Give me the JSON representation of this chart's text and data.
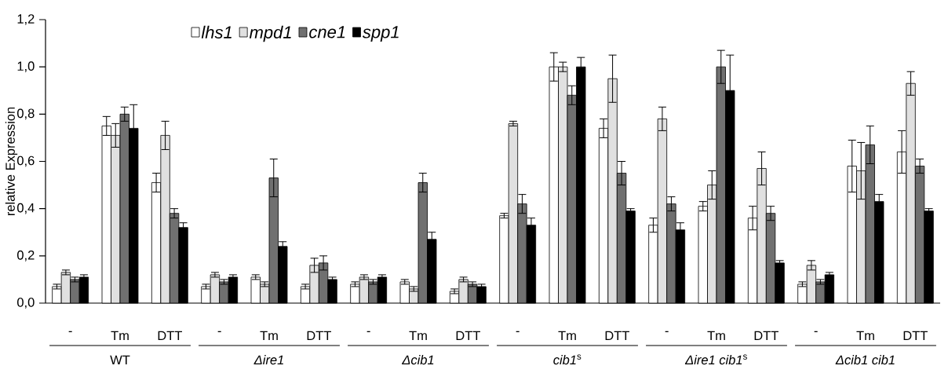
{
  "chart_data": {
    "type": "bar",
    "ylabel": "relative Expression",
    "categories": [
      "-",
      "Tm",
      "DTT",
      "-",
      "Tm",
      "DTT",
      "-",
      "Tm",
      "DTT",
      "-",
      "Tm",
      "DTT",
      "-",
      "Tm",
      "DTT",
      "-",
      "Tm",
      "DTT"
    ],
    "series": [
      {
        "name": "lhs1",
        "color": "#ffffff",
        "values": [
          0.07,
          0.75,
          0.51,
          0.07,
          0.11,
          0.07,
          0.08,
          0.09,
          0.05,
          0.37,
          1.0,
          0.74,
          0.33,
          0.41,
          0.36,
          0.08,
          0.58,
          0.64
        ],
        "errors": [
          0.01,
          0.04,
          0.04,
          0.01,
          0.01,
          0.01,
          0.01,
          0.01,
          0.01,
          0.01,
          0.06,
          0.04,
          0.03,
          0.02,
          0.05,
          0.01,
          0.11,
          0.09
        ]
      },
      {
        "name": "mpd1",
        "color": "#e0e0e0",
        "values": [
          0.13,
          0.71,
          0.71,
          0.12,
          0.08,
          0.16,
          0.11,
          0.06,
          0.1,
          0.76,
          1.0,
          0.95,
          0.78,
          0.5,
          0.57,
          0.16,
          0.56,
          0.93
        ],
        "errors": [
          0.01,
          0.05,
          0.06,
          0.01,
          0.01,
          0.03,
          0.01,
          0.01,
          0.01,
          0.01,
          0.02,
          0.1,
          0.05,
          0.06,
          0.07,
          0.02,
          0.12,
          0.05
        ]
      },
      {
        "name": "cne1",
        "color": "#707070",
        "values": [
          0.1,
          0.8,
          0.38,
          0.09,
          0.53,
          0.17,
          0.09,
          0.51,
          0.08,
          0.42,
          0.88,
          0.55,
          0.42,
          1.0,
          0.38,
          0.09,
          0.67,
          0.58
        ],
        "errors": [
          0.01,
          0.03,
          0.02,
          0.01,
          0.08,
          0.03,
          0.01,
          0.04,
          0.01,
          0.04,
          0.04,
          0.05,
          0.03,
          0.07,
          0.03,
          0.01,
          0.08,
          0.03
        ]
      },
      {
        "name": "spp1",
        "color": "#000000",
        "values": [
          0.11,
          0.74,
          0.32,
          0.11,
          0.24,
          0.1,
          0.11,
          0.27,
          0.07,
          0.33,
          1.0,
          0.39,
          0.31,
          0.9,
          0.17,
          0.12,
          0.43,
          0.39
        ],
        "errors": [
          0.01,
          0.1,
          0.02,
          0.01,
          0.02,
          0.01,
          0.01,
          0.03,
          0.01,
          0.03,
          0.04,
          0.01,
          0.03,
          0.15,
          0.01,
          0.01,
          0.03,
          0.01
        ]
      }
    ],
    "ylim": [
      0,
      1.2
    ],
    "yticks": [
      {
        "value": 0,
        "label": "0,0"
      },
      {
        "value": 0.2,
        "label": "0,2"
      },
      {
        "value": 0.4,
        "label": "0,4"
      },
      {
        "value": 0.6,
        "label": "0,6"
      },
      {
        "value": 0.8,
        "label": "0,8"
      },
      {
        "value": 1.0,
        "label": "1,0"
      },
      {
        "value": 1.2,
        "label": "1,2"
      }
    ],
    "annotations": [
      "WT",
      "*Δire1*",
      "*Δcib1*",
      "*cib1*$^{s}$",
      "*Δire1 cib1*$^{s}$",
      "*Δcib1 cib1*"
    ],
    "legend": "top left",
    "grid": false
  }
}
